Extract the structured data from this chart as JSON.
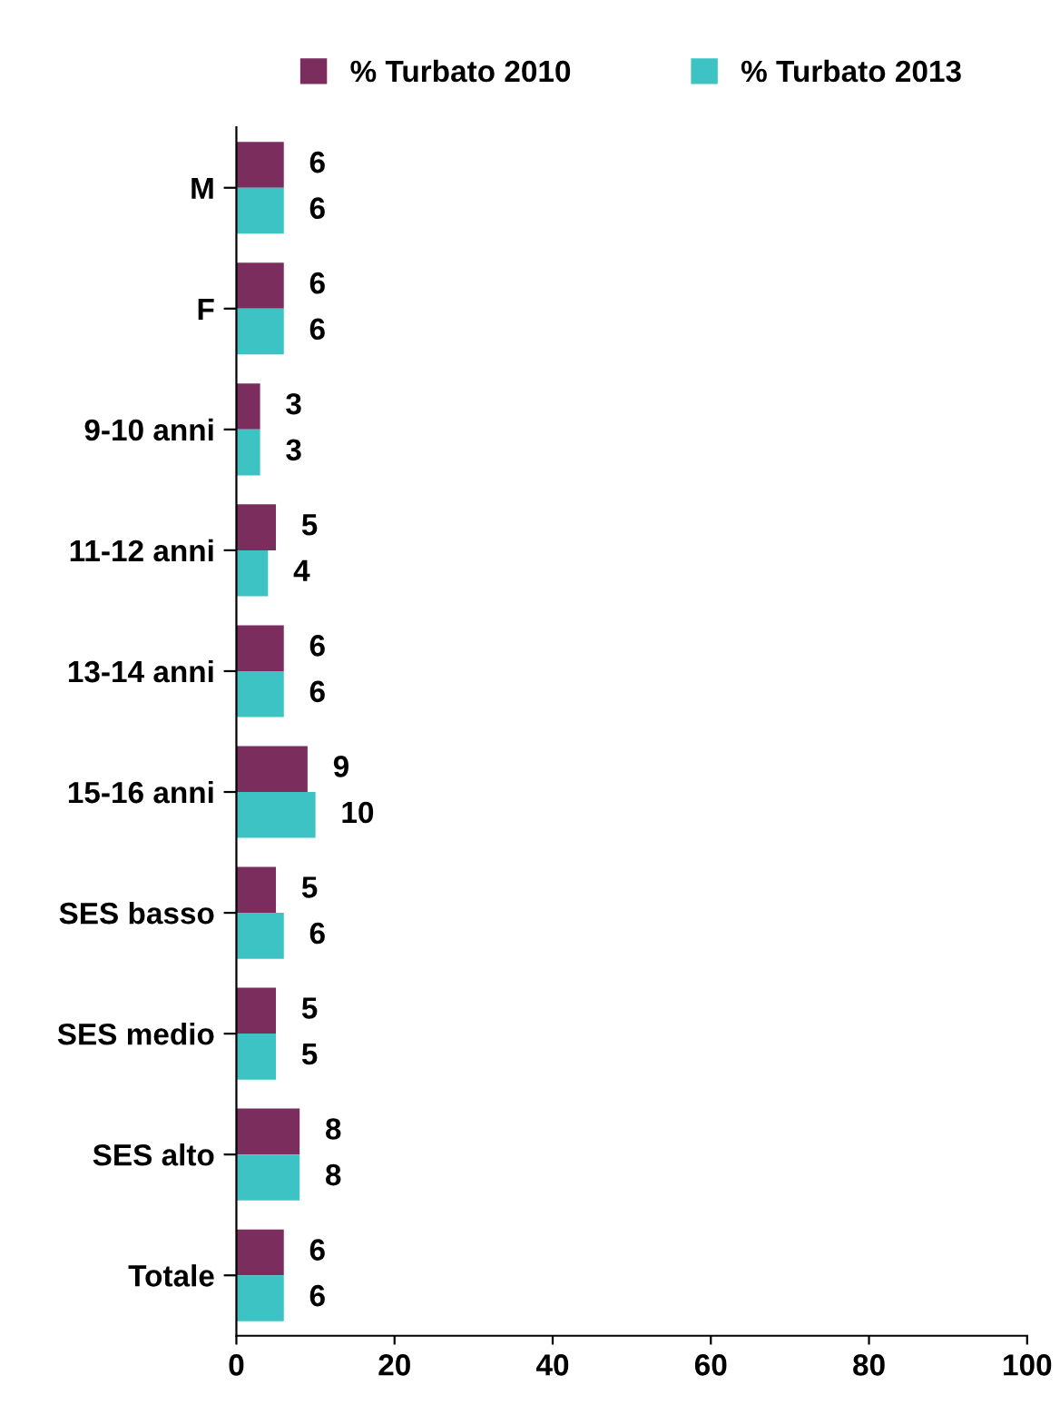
{
  "chart_data": {
    "type": "bar",
    "orientation": "horizontal",
    "categories": [
      "M",
      "F",
      "9-10 anni",
      "11-12 anni",
      "13-14 anni",
      "15-16 anni",
      "SES basso",
      "SES medio",
      "SES alto",
      "Totale"
    ],
    "series": [
      {
        "name": "% Turbato 2010",
        "color": "#7b2d5e",
        "values": [
          6,
          6,
          3,
          5,
          6,
          9,
          5,
          5,
          8,
          6
        ]
      },
      {
        "name": "% Turbato 2013",
        "color": "#3dc3c3",
        "values": [
          6,
          6,
          3,
          4,
          6,
          10,
          6,
          5,
          8,
          6
        ]
      }
    ],
    "xlim": [
      0,
      100
    ],
    "xticks": [
      0,
      20,
      40,
      60,
      80,
      100
    ],
    "data_labels": true,
    "legend": "top",
    "grid": false
  }
}
